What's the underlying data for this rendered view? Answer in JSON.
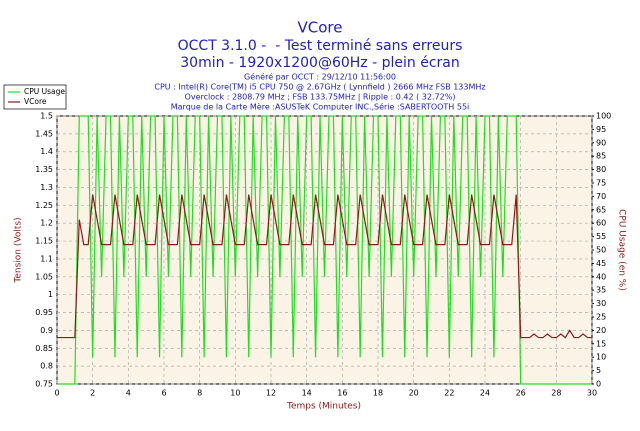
{
  "chart_data": {
    "type": "line",
    "title": "VCore",
    "subtitle": [
      "OCCT 3.1.0 -  - Test terminé sans erreurs",
      "30min - 1920x1200@60Hz - plein écran"
    ],
    "info": [
      "Généré par OCCT : 29/12/10 11:56:00",
      "CPU : Intel(R) Core(TM) i5 CPU 750 @ 2.67GHz ( Lynnfield ) 2666 MHz FSB 133MHz",
      "Overclock : 2808.79 MHz ; FSB 133.75MHz | Ripple : 0.42 ( 32.72%)",
      "Marque de la Carte Mère :ASUSTeK Computer INC.,Série :SABERTOOTH 55i"
    ],
    "xlabel": "Temps (Minutes)",
    "ylabel": "Tension (Volts)",
    "y2label": "CPU Usage (en %)",
    "xlim": [
      0,
      30
    ],
    "xticks": [
      0,
      2,
      4,
      6,
      8,
      10,
      12,
      14,
      16,
      18,
      20,
      22,
      24,
      26,
      28,
      30
    ],
    "ylim": [
      0.75,
      1.5
    ],
    "yticks": [
      0.75,
      0.8,
      0.85,
      0.9,
      0.95,
      1,
      1.05,
      1.1,
      1.15,
      1.2,
      1.25,
      1.3,
      1.35,
      1.4,
      1.45,
      1.5
    ],
    "y2lim": [
      0,
      100
    ],
    "y2ticks": [
      0,
      5,
      10,
      15,
      20,
      25,
      30,
      35,
      40,
      45,
      50,
      55,
      60,
      65,
      70,
      75,
      80,
      85,
      90,
      95,
      100
    ],
    "grid": true,
    "legend": "top-left",
    "x": [
      0,
      0.25,
      0.5,
      0.75,
      1,
      1.25,
      1.5,
      1.75,
      2,
      2.25,
      2.5,
      2.75,
      3,
      3.25,
      3.5,
      3.75,
      4,
      4.25,
      4.5,
      4.75,
      5,
      5.25,
      5.5,
      5.75,
      6,
      6.25,
      6.5,
      6.75,
      7,
      7.25,
      7.5,
      7.75,
      8,
      8.25,
      8.5,
      8.75,
      9,
      9.25,
      9.5,
      9.75,
      10,
      10.25,
      10.5,
      10.75,
      11,
      11.25,
      11.5,
      11.75,
      12,
      12.25,
      12.5,
      12.75,
      13,
      13.25,
      13.5,
      13.75,
      14,
      14.25,
      14.5,
      14.75,
      15,
      15.25,
      15.5,
      15.75,
      16,
      16.25,
      16.5,
      16.75,
      17,
      17.25,
      17.5,
      17.75,
      18,
      18.25,
      18.5,
      18.75,
      19,
      19.25,
      19.5,
      19.75,
      20,
      20.25,
      20.5,
      20.75,
      21,
      21.25,
      21.5,
      21.75,
      22,
      22.25,
      22.5,
      22.75,
      23,
      23.25,
      23.5,
      23.75,
      24,
      24.25,
      24.5,
      24.75,
      25,
      25.25,
      25.5,
      25.75,
      26,
      26.25,
      26.5,
      26.75,
      27,
      27.25,
      27.5,
      27.75,
      28,
      28.25,
      28.5,
      28.75,
      29,
      29.25,
      29.5,
      29.75,
      30
    ],
    "series": [
      {
        "name": "CPU Usage",
        "color": "#22dd22",
        "axis": "y2",
        "values": [
          0,
          0,
          0,
          0,
          0,
          100,
          100,
          100,
          10,
          100,
          40,
          100,
          100,
          10,
          100,
          40,
          100,
          100,
          10,
          100,
          40,
          100,
          100,
          10,
          100,
          40,
          100,
          100,
          10,
          100,
          40,
          100,
          100,
          10,
          100,
          40,
          100,
          100,
          10,
          100,
          40,
          100,
          100,
          10,
          100,
          40,
          100,
          100,
          10,
          100,
          40,
          100,
          100,
          10,
          100,
          40,
          100,
          100,
          10,
          100,
          40,
          100,
          100,
          10,
          100,
          40,
          100,
          100,
          10,
          100,
          40,
          100,
          100,
          10,
          100,
          40,
          100,
          100,
          10,
          100,
          40,
          100,
          100,
          10,
          100,
          40,
          100,
          100,
          10,
          100,
          40,
          100,
          100,
          10,
          100,
          40,
          100,
          100,
          10,
          100,
          40,
          100,
          100,
          100,
          0,
          0,
          0,
          0,
          0,
          0,
          0,
          0,
          0,
          0,
          0,
          0,
          0,
          0,
          0,
          0,
          0
        ]
      },
      {
        "name": "VCore",
        "color": "#8b1a1a",
        "values": [
          0.88,
          0.88,
          0.88,
          0.88,
          0.88,
          1.21,
          1.14,
          1.14,
          1.28,
          1.21,
          1.14,
          1.14,
          1.14,
          1.28,
          1.21,
          1.14,
          1.14,
          1.14,
          1.28,
          1.21,
          1.14,
          1.14,
          1.14,
          1.28,
          1.21,
          1.14,
          1.14,
          1.14,
          1.28,
          1.21,
          1.14,
          1.14,
          1.14,
          1.28,
          1.21,
          1.14,
          1.14,
          1.14,
          1.28,
          1.21,
          1.14,
          1.14,
          1.14,
          1.28,
          1.21,
          1.14,
          1.14,
          1.14,
          1.28,
          1.21,
          1.14,
          1.14,
          1.14,
          1.28,
          1.21,
          1.14,
          1.14,
          1.14,
          1.28,
          1.21,
          1.14,
          1.14,
          1.14,
          1.28,
          1.21,
          1.14,
          1.14,
          1.14,
          1.28,
          1.21,
          1.14,
          1.14,
          1.14,
          1.28,
          1.21,
          1.14,
          1.14,
          1.14,
          1.28,
          1.21,
          1.14,
          1.14,
          1.14,
          1.28,
          1.21,
          1.14,
          1.14,
          1.14,
          1.28,
          1.21,
          1.14,
          1.14,
          1.14,
          1.28,
          1.21,
          1.14,
          1.14,
          1.14,
          1.28,
          1.21,
          1.14,
          1.14,
          1.14,
          1.28,
          0.88,
          0.88,
          0.88,
          0.89,
          0.88,
          0.88,
          0.89,
          0.88,
          0.88,
          0.89,
          0.88,
          0.9,
          0.88,
          0.88,
          0.89,
          0.88,
          0.88
        ]
      }
    ]
  }
}
